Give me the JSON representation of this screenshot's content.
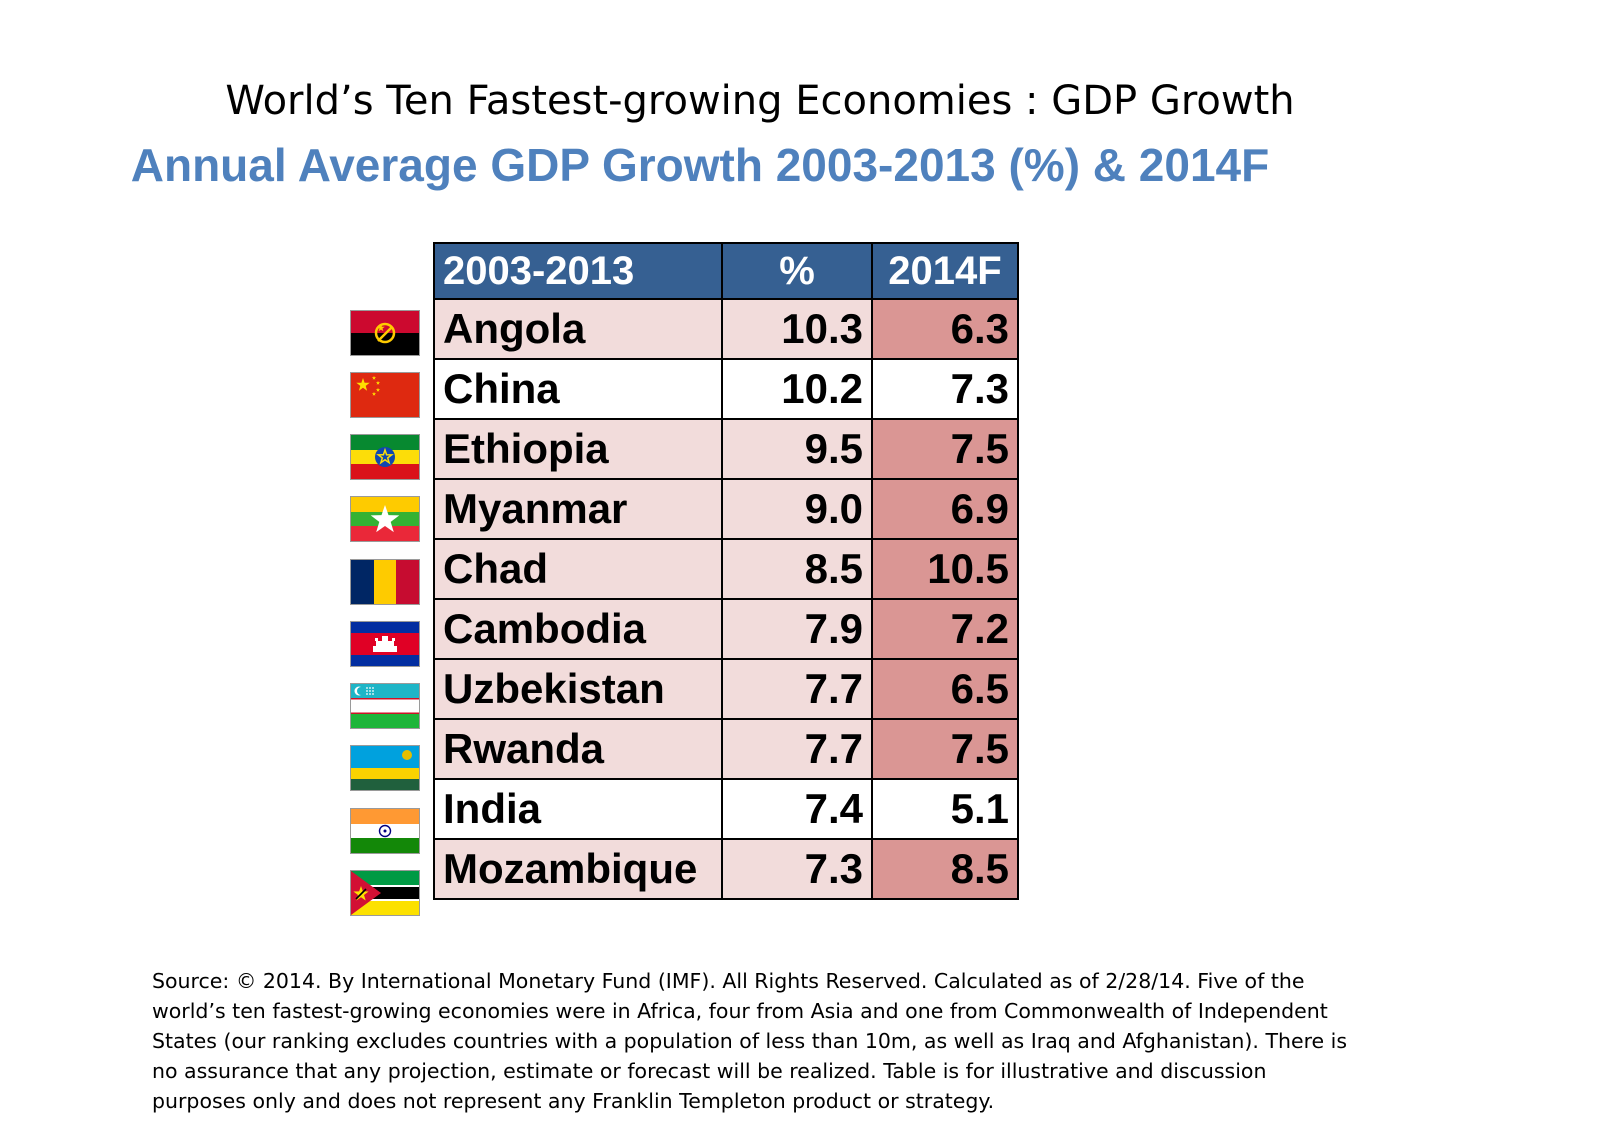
{
  "title": "World’s Ten Fastest-growing Economies : GDP Growth",
  "subtitle": "Annual Average GDP Growth 2003-2013 (%) & 2014F",
  "colors": {
    "accent": "#4f81bd",
    "header_bg": "#366092",
    "header_text": "#ffffff",
    "row_shaded": "#f2dcdb",
    "row_white": "#ffffff",
    "forecast_shaded": "#da9694"
  },
  "chart_data": {
    "type": "table",
    "title": "World’s Ten Fastest-growing Economies : GDP Growth",
    "subtitle": "Annual Average GDP Growth 2003-2013 (%) & 2014F",
    "columns": [
      "2003-2013",
      "%",
      "2014F"
    ],
    "rows": [
      {
        "country": "Angola",
        "avg": "10.3",
        "f2014": "6.3",
        "shaded": true,
        "flag": "angola-flag"
      },
      {
        "country": "China",
        "avg": "10.2",
        "f2014": "7.3",
        "shaded": false,
        "flag": "china-flag"
      },
      {
        "country": "Ethiopia",
        "avg": "9.5",
        "f2014": "7.5",
        "shaded": true,
        "flag": "ethiopia-flag"
      },
      {
        "country": "Myanmar",
        "avg": "9.0",
        "f2014": "6.9",
        "shaded": true,
        "flag": "myanmar-flag"
      },
      {
        "country": "Chad",
        "avg": "8.5",
        "f2014": "10.5",
        "shaded": true,
        "flag": "chad-flag"
      },
      {
        "country": "Cambodia",
        "avg": "7.9",
        "f2014": "7.2",
        "shaded": true,
        "flag": "cambodia-flag"
      },
      {
        "country": "Uzbekistan",
        "avg": "7.7",
        "f2014": "6.5",
        "shaded": true,
        "flag": "uzbekistan-flag"
      },
      {
        "country": "Rwanda",
        "avg": "7.7",
        "f2014": "7.5",
        "shaded": true,
        "flag": "rwanda-flag"
      },
      {
        "country": "India",
        "avg": "7.4",
        "f2014": "5.1",
        "shaded": false,
        "flag": "india-flag"
      },
      {
        "country": "Mozambique",
        "avg": "7.3",
        "f2014": "8.5",
        "shaded": true,
        "flag": "mozambique-flag"
      }
    ]
  },
  "source_note": "Source: © 2014. By International Monetary Fund (IMF). All Rights Reserved. Calculated as of 2/28/14. Five of the world’s ten fastest-growing economies were in Africa, four from Asia and one from Commonwealth of Independent States (our ranking excludes countries with a population of less than 10m, as well as Iraq and Afghanistan). There is no assurance that any projection, estimate or forecast will be realized. Table is for illustrative and discussion purposes only and does not represent any Franklin Templeton product or strategy."
}
